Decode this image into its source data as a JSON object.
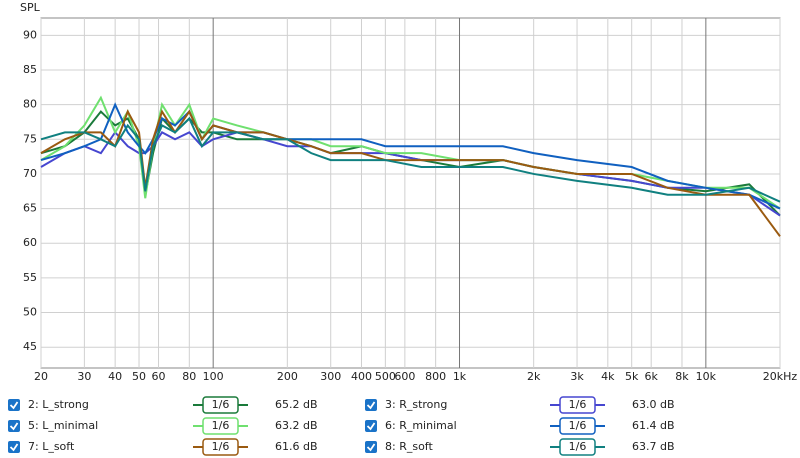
{
  "chart_data": {
    "type": "line",
    "y_label": "SPL",
    "xscale": "log",
    "xlim": [
      20,
      20000
    ],
    "ylim": [
      42,
      92.5
    ],
    "xticks": [
      20,
      30,
      40,
      50,
      60,
      80,
      100,
      200,
      300,
      400,
      500,
      600,
      800,
      {
        "value": 1000,
        "label": "1k"
      },
      {
        "value": 2000,
        "label": "2k"
      },
      {
        "value": 3000,
        "label": "3k"
      },
      {
        "value": 4000,
        "label": "4k"
      },
      {
        "value": 5000,
        "label": "5k"
      },
      {
        "value": 6000,
        "label": "6k"
      },
      {
        "value": 8000,
        "label": "8k"
      },
      {
        "value": 10000,
        "label": "10k"
      },
      {
        "value": 20000,
        "label": "20kHz"
      }
    ],
    "yticks": [
      45,
      50,
      55,
      60,
      65,
      70,
      75,
      80,
      85,
      90
    ],
    "grid": true,
    "x": [
      20,
      25,
      30,
      35,
      40,
      45,
      50,
      53,
      57,
      62,
      70,
      80,
      90,
      100,
      125,
      160,
      200,
      250,
      300,
      400,
      500,
      700,
      1000,
      1500,
      2000,
      3000,
      5000,
      7000,
      10000,
      15000,
      20000
    ],
    "series": [
      {
        "name": "2: L_strong",
        "color": "#1a7a3a",
        "smoothing": "1/6",
        "level": "65.2 dB",
        "values": [
          73,
          74,
          76,
          79,
          77,
          78,
          75,
          67,
          73,
          78,
          76,
          78,
          76,
          76,
          75,
          75,
          75,
          74,
          73,
          74,
          73,
          72,
          71,
          72,
          71,
          70,
          69,
          68,
          67.5,
          68.5,
          64
        ]
      },
      {
        "name": "3: R_strong",
        "color": "#4646d0",
        "smoothing": "1/6",
        "level": "63.0 dB",
        "values": [
          71,
          73,
          74,
          73,
          76,
          74,
          73,
          73,
          74,
          76,
          75,
          76,
          74,
          75,
          76,
          75,
          74,
          74,
          73,
          73,
          73,
          72,
          72,
          72,
          71,
          70,
          69,
          68,
          68,
          67,
          64
        ]
      },
      {
        "name": "5: L_minimal",
        "color": "#6fe06f",
        "smoothing": "1/6",
        "level": "63.2 dB",
        "values": [
          72,
          74,
          77,
          81,
          76,
          79,
          74,
          66.5,
          74,
          80,
          77,
          80,
          75,
          78,
          77,
          76,
          75,
          75,
          74,
          74,
          73,
          73,
          72,
          72,
          71,
          70,
          70,
          69,
          68,
          68,
          65
        ]
      },
      {
        "name": "6: R_minimal",
        "color": "#1060c0",
        "smoothing": "1/6",
        "level": "61.4 dB",
        "values": [
          72,
          73,
          74,
          75,
          80,
          76,
          74,
          73,
          75,
          78,
          77,
          79,
          75,
          77,
          76,
          76,
          75,
          75,
          75,
          75,
          74,
          74,
          74,
          74,
          73,
          72,
          71,
          69,
          68,
          67,
          65
        ]
      },
      {
        "name": "7: L_soft",
        "color": "#9a5a10",
        "smoothing": "1/6",
        "level": "61.6 dB",
        "values": [
          73,
          75,
          76,
          76,
          74,
          79,
          76,
          68,
          75,
          79,
          76,
          79,
          75,
          77,
          76,
          76,
          75,
          74,
          73,
          73,
          72,
          72,
          72,
          72,
          71,
          70,
          70,
          68,
          67,
          67,
          61
        ]
      },
      {
        "name": "8: R_soft",
        "color": "#108080",
        "smoothing": "1/6",
        "level": "63.7 dB",
        "values": [
          75,
          76,
          76,
          75,
          74,
          77,
          75,
          67.5,
          74,
          77,
          76,
          78,
          74,
          76,
          76,
          75,
          75,
          73,
          72,
          72,
          72,
          71,
          71,
          71,
          70,
          69,
          68,
          67,
          67,
          68,
          66
        ]
      }
    ]
  }
}
